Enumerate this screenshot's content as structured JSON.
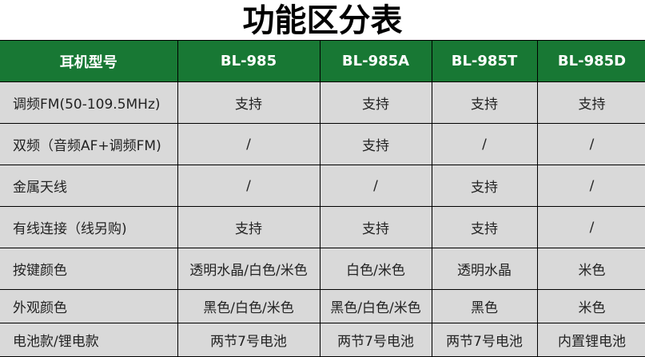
{
  "title": "功能区分表",
  "colors": {
    "header_bg": "#187834",
    "cell_bg": "#d9d9d9"
  },
  "table": {
    "headers": [
      "耳机型号",
      "BL-985",
      "BL-985A",
      "BL-985T",
      "BL-985D"
    ],
    "rows": [
      [
        "调频FM(50-109.5MHz)",
        "支持",
        "支持",
        "支持",
        "支持"
      ],
      [
        "双频（音频AF+调频FM)",
        "/",
        "支持",
        "/",
        "/"
      ],
      [
        "金属天线",
        "/",
        "/",
        "支持",
        "/"
      ],
      [
        "有线连接（线另购)",
        "支持",
        "支持",
        "支持",
        "/"
      ],
      [
        "按键颜色",
        "透明水晶/白色/米色",
        "白色/米色",
        "透明水晶",
        "米色"
      ],
      [
        "外观颜色",
        "黑色/白色/米色",
        "黑色/白色/米色",
        "黑色",
        "米色"
      ],
      [
        "电池款/锂电款",
        "两节7号电池",
        "两节7号电池",
        "两节7号电池",
        "内置锂电池"
      ]
    ]
  }
}
